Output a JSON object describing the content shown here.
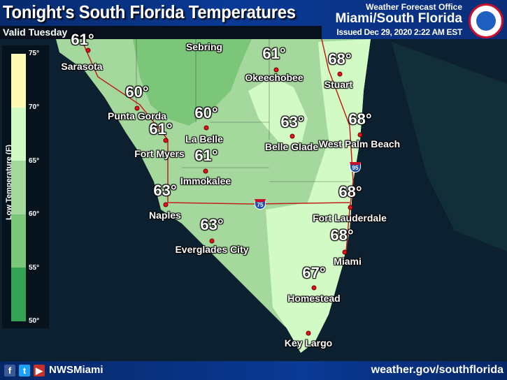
{
  "header": {
    "title": "Tonight's South Florida Temperatures",
    "valid": "Valid Tuesday",
    "office_label": "Weather Forecast Office",
    "office": "Miami/South Florida",
    "issued": "Issued Dec 29, 2020 2:22 AM EST",
    "logo_text": "NATIONAL WEATHER SERVICE"
  },
  "legend": {
    "title": "Low Temperature (F)",
    "ticks": [
      "75°",
      "70°",
      "65°",
      "60°",
      "55°",
      "50°"
    ],
    "bins": [
      {
        "range": "70-75",
        "color": "#fdfab3"
      },
      {
        "range": "65-70",
        "color": "#d2fac4"
      },
      {
        "range": "60-65",
        "color": "#a5d89d"
      },
      {
        "range": "55-60",
        "color": "#7cc67a"
      },
      {
        "range": "50-55",
        "color": "#34a356"
      }
    ]
  },
  "cities": [
    {
      "name": "Sarasota",
      "temp": "61°"
    },
    {
      "name": "Sebring",
      "temp": null
    },
    {
      "name": "Okeechobee",
      "temp": "61°"
    },
    {
      "name": "Stuart",
      "temp": "68°"
    },
    {
      "name": "Punta Gorda",
      "temp": "60°"
    },
    {
      "name": "La Belle",
      "temp": "60°"
    },
    {
      "name": "Fort Myers",
      "temp": "61°"
    },
    {
      "name": "Belle Glade",
      "temp": "63°"
    },
    {
      "name": "West Palm Beach",
      "temp": "68°"
    },
    {
      "name": "Immokalee",
      "temp": "61°"
    },
    {
      "name": "Naples",
      "temp": "63°"
    },
    {
      "name": "Fort Lauderdale",
      "temp": "68°"
    },
    {
      "name": "Everglades City",
      "temp": "63°"
    },
    {
      "name": "Miami",
      "temp": "68°"
    },
    {
      "name": "Homestead",
      "temp": "67°"
    },
    {
      "name": "Key Largo",
      "temp": null
    }
  ],
  "interstates": [
    "95",
    "75"
  ],
  "footer": {
    "social": [
      "facebook-icon",
      "twitter-icon",
      "youtube-icon"
    ],
    "handle": "NWSMiami",
    "url": "weather.gov/southflorida"
  }
}
